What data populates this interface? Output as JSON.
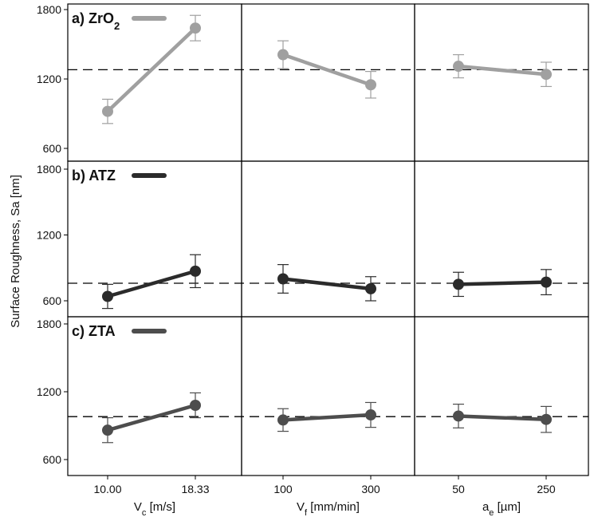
{
  "chart_data": {
    "type": "line",
    "ylabel": "Surface Roughness, Sa [nm]",
    "ylim": [
      450,
      1850
    ],
    "yticks": [
      "600",
      "1200",
      "1800"
    ],
    "yticks_values": [
      600,
      1200,
      1800
    ],
    "grid": false,
    "factors": [
      {
        "label_main": "V",
        "label_sub": "c",
        "label_unit": " [m/s]",
        "levels": [
          "10.00",
          "18.33"
        ]
      },
      {
        "label_main": "V",
        "label_sub": "f",
        "label_unit": " [mm/min]",
        "levels": [
          "100",
          "300"
        ]
      },
      {
        "label_main": "a",
        "label_sub": "e",
        "label_unit": " [µm]",
        "levels": [
          "50",
          "250"
        ]
      }
    ],
    "rows": [
      {
        "label_main": "a) ZrO",
        "label_sub": "2",
        "color": "#a0a0a0",
        "mean": 1280,
        "series": [
          {
            "values": [
              920,
              1640
            ],
            "err": [
              105,
              110
            ]
          },
          {
            "values": [
              1410,
              1150
            ],
            "err": [
              120,
              115
            ]
          },
          {
            "values": [
              1310,
              1240
            ],
            "err": [
              100,
              105
            ]
          }
        ]
      },
      {
        "label_main": "b) ATZ",
        "label_sub": "",
        "color": "#2b2b2b",
        "mean": 760,
        "series": [
          {
            "values": [
              640,
              870
            ],
            "err": [
              110,
              150
            ]
          },
          {
            "values": [
              800,
              710
            ],
            "err": [
              130,
              110
            ]
          },
          {
            "values": [
              750,
              770
            ],
            "err": [
              110,
              115
            ]
          }
        ]
      },
      {
        "label_main": "c) ZTA",
        "label_sub": "",
        "color": "#4d4d4d",
        "mean": 980,
        "series": [
          {
            "values": [
              860,
              1080
            ],
            "err": [
              110,
              110
            ]
          },
          {
            "values": [
              950,
              995
            ],
            "err": [
              100,
              110
            ]
          },
          {
            "values": [
              985,
              955
            ],
            "err": [
              105,
              115
            ]
          }
        ]
      }
    ]
  }
}
